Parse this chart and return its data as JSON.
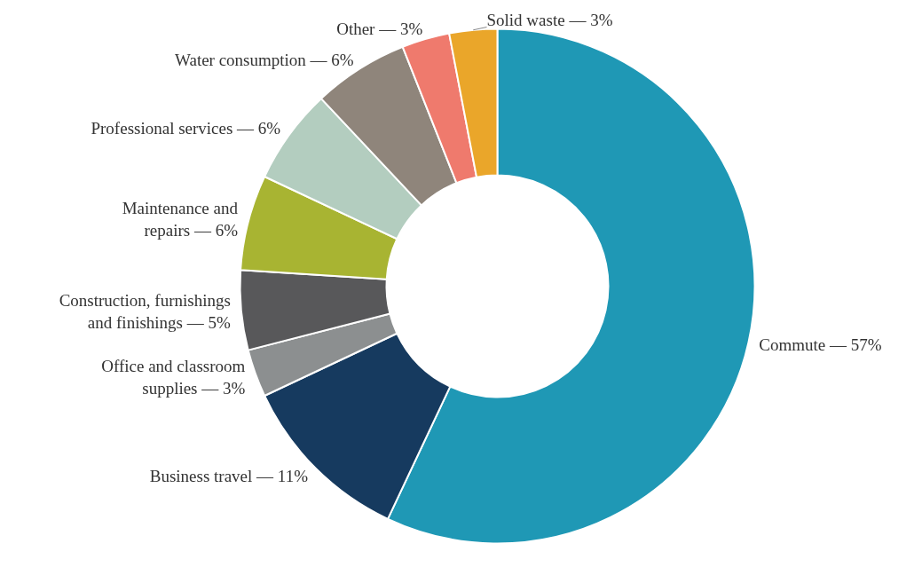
{
  "chart_data": {
    "type": "donut",
    "categories": [
      "Commute — 57%",
      "Business travel — 11%",
      "Office and classroom\nsupplies — 3%",
      "Construction, furnishings\nand finishings — 5%",
      "Maintenance and\nrepairs — 6%",
      "Professional services — 6%",
      "Water consumption — 6%",
      "Other — 3%",
      "Solid waste — 3%"
    ],
    "values": [
      57,
      11,
      3,
      5,
      6,
      6,
      6,
      3,
      3
    ],
    "colors": [
      "#1f98b5",
      "#163a5f",
      "#8c8f90",
      "#58585a",
      "#a8b432",
      "#b3cdbf",
      "#8f857b",
      "#ef7a6d",
      "#eaa62a"
    ]
  }
}
